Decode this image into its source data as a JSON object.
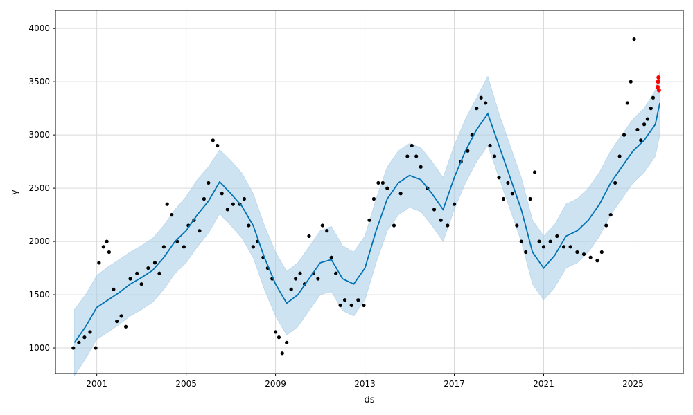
{
  "chart_data": {
    "type": "scatter",
    "title": "",
    "xlabel": "ds",
    "ylabel": "y",
    "xlim": [
      1999.15,
      2027.25
    ],
    "ylim": [
      760,
      4170
    ],
    "x_ticks": [
      2001,
      2005,
      2009,
      2013,
      2017,
      2021,
      2025
    ],
    "y_ticks": [
      1000,
      1500,
      2000,
      2500,
      3000,
      3500,
      4000
    ],
    "grid": true,
    "colors": {
      "observed": "#000000",
      "forecast_line": "#0072B2",
      "interval_fill": "#a6cce6",
      "future": "#ff0000"
    },
    "series": [
      {
        "kind": "forecast_trend",
        "x": [
          2000.0,
          2000.5,
          2001.0,
          2001.5,
          2002.0,
          2002.5,
          2003.0,
          2003.5,
          2004.0,
          2004.5,
          2005.0,
          2005.5,
          2006.0,
          2006.5,
          2007.0,
          2007.5,
          2008.0,
          2008.5,
          2009.0,
          2009.5,
          2010.0,
          2010.5,
          2011.0,
          2011.5,
          2012.0,
          2012.5,
          2013.0,
          2013.5,
          2014.0,
          2014.5,
          2015.0,
          2015.5,
          2016.0,
          2016.5,
          2017.0,
          2017.5,
          2018.0,
          2018.5,
          2019.0,
          2019.5,
          2020.0,
          2020.5,
          2021.0,
          2021.5,
          2022.0,
          2022.5,
          2023.0,
          2023.5,
          2024.0,
          2024.5,
          2025.0,
          2025.5,
          2026.0,
          2026.2
        ],
        "y": [
          1050,
          1200,
          1380,
          1450,
          1520,
          1600,
          1660,
          1730,
          1850,
          2000,
          2100,
          2250,
          2380,
          2560,
          2450,
          2330,
          2150,
          1850,
          1600,
          1420,
          1500,
          1650,
          1800,
          1830,
          1650,
          1600,
          1750,
          2100,
          2400,
          2550,
          2620,
          2580,
          2450,
          2300,
          2600,
          2850,
          3050,
          3200,
          2900,
          2600,
          2300,
          1900,
          1750,
          1870,
          2050,
          2100,
          2200,
          2350,
          2550,
          2700,
          2850,
          2950,
          3100,
          3300
        ]
      },
      {
        "kind": "forecast_upper",
        "x": [
          2000.0,
          2000.5,
          2001.0,
          2001.5,
          2002.0,
          2002.5,
          2003.0,
          2003.5,
          2004.0,
          2004.5,
          2005.0,
          2005.5,
          2006.0,
          2006.5,
          2007.0,
          2007.5,
          2008.0,
          2008.5,
          2009.0,
          2009.5,
          2010.0,
          2010.5,
          2011.0,
          2011.5,
          2012.0,
          2012.5,
          2013.0,
          2013.5,
          2014.0,
          2014.5,
          2015.0,
          2015.5,
          2016.0,
          2016.5,
          2017.0,
          2017.5,
          2018.0,
          2018.5,
          2019.0,
          2019.5,
          2020.0,
          2020.5,
          2021.0,
          2021.5,
          2022.0,
          2022.5,
          2023.0,
          2023.5,
          2024.0,
          2024.5,
          2025.0,
          2025.5,
          2026.0,
          2026.2
        ],
        "y": [
          1360,
          1500,
          1680,
          1760,
          1830,
          1900,
          1960,
          2030,
          2150,
          2300,
          2420,
          2580,
          2700,
          2860,
          2760,
          2640,
          2450,
          2150,
          1900,
          1720,
          1800,
          1950,
          2100,
          2140,
          1960,
          1900,
          2050,
          2400,
          2700,
          2850,
          2920,
          2880,
          2750,
          2600,
          2900,
          3150,
          3350,
          3550,
          3200,
          2900,
          2600,
          2200,
          2050,
          2160,
          2350,
          2400,
          2500,
          2650,
          2850,
          3000,
          3150,
          3250,
          3420,
          3600
        ]
      },
      {
        "kind": "forecast_lower",
        "x": [
          2000.0,
          2000.5,
          2001.0,
          2001.5,
          2002.0,
          2002.5,
          2003.0,
          2003.5,
          2004.0,
          2004.5,
          2005.0,
          2005.5,
          2006.0,
          2006.5,
          2007.0,
          2007.5,
          2008.0,
          2008.5,
          2009.0,
          2009.5,
          2010.0,
          2010.5,
          2011.0,
          2011.5,
          2012.0,
          2012.5,
          2013.0,
          2013.5,
          2014.0,
          2014.5,
          2015.0,
          2015.5,
          2016.0,
          2016.5,
          2017.0,
          2017.5,
          2018.0,
          2018.5,
          2019.0,
          2019.5,
          2020.0,
          2020.5,
          2021.0,
          2021.5,
          2022.0,
          2022.5,
          2023.0,
          2023.5,
          2024.0,
          2024.5,
          2025.0,
          2025.5,
          2026.0,
          2026.2
        ],
        "y": [
          740,
          900,
          1080,
          1150,
          1220,
          1300,
          1360,
          1430,
          1550,
          1700,
          1800,
          1950,
          2080,
          2260,
          2150,
          2030,
          1850,
          1550,
          1300,
          1120,
          1200,
          1350,
          1500,
          1530,
          1350,
          1300,
          1450,
          1800,
          2100,
          2250,
          2320,
          2280,
          2150,
          2000,
          2300,
          2550,
          2750,
          2900,
          2600,
          2300,
          2000,
          1600,
          1450,
          1570,
          1750,
          1800,
          1900,
          2050,
          2250,
          2400,
          2550,
          2650,
          2800,
          3000
        ]
      },
      {
        "kind": "observed",
        "x": [
          1999.95,
          2000.2,
          2000.45,
          2000.7,
          2000.95,
          2001.1,
          2001.3,
          2001.45,
          2001.55,
          2001.75,
          2001.9,
          2002.1,
          2002.3,
          2002.5,
          2002.8,
          2003.0,
          2003.3,
          2003.6,
          2003.8,
          2004.0,
          2004.15,
          2004.35,
          2004.6,
          2004.9,
          2005.1,
          2005.35,
          2005.6,
          2005.8,
          2006.0,
          2006.2,
          2006.4,
          2006.6,
          2006.85,
          2007.1,
          2007.4,
          2007.6,
          2007.8,
          2008.0,
          2008.2,
          2008.45,
          2008.65,
          2008.85,
          2009.0,
          2009.15,
          2009.3,
          2009.5,
          2009.7,
          2009.9,
          2010.1,
          2010.3,
          2010.5,
          2010.7,
          2010.9,
          2011.1,
          2011.3,
          2011.5,
          2011.7,
          2011.9,
          2012.1,
          2012.4,
          2012.7,
          2012.95,
          2013.2,
          2013.4,
          2013.6,
          2013.8,
          2014.0,
          2014.3,
          2014.6,
          2014.9,
          2015.1,
          2015.3,
          2015.5,
          2015.8,
          2016.1,
          2016.4,
          2016.7,
          2017.0,
          2017.3,
          2017.6,
          2017.8,
          2018.0,
          2018.2,
          2018.4,
          2018.6,
          2018.8,
          2019.0,
          2019.2,
          2019.4,
          2019.6,
          2019.8,
          2020.0,
          2020.2,
          2020.4,
          2020.6,
          2020.8,
          2021.0,
          2021.3,
          2021.6,
          2021.9,
          2022.2,
          2022.5,
          2022.8,
          2023.1,
          2023.4,
          2023.6,
          2023.8,
          2024.0,
          2024.2,
          2024.4,
          2024.6,
          2024.75,
          2024.9,
          2025.05,
          2025.2,
          2025.35,
          2025.5,
          2025.65,
          2025.8,
          2025.9
        ],
        "y": [
          1000,
          1050,
          1100,
          1150,
          1000,
          1800,
          1950,
          2000,
          1900,
          1550,
          1250,
          1300,
          1200,
          1650,
          1700,
          1600,
          1750,
          1800,
          1700,
          1950,
          2350,
          2250,
          2000,
          1950,
          2150,
          2200,
          2100,
          2400,
          2550,
          2950,
          2900,
          2450,
          2300,
          2350,
          2350,
          2400,
          2150,
          1950,
          2000,
          1850,
          1750,
          1650,
          1150,
          1100,
          950,
          1050,
          1550,
          1650,
          1700,
          1600,
          2050,
          1700,
          1650,
          2150,
          2100,
          1850,
          1700,
          1400,
          1450,
          1400,
          1450,
          1400,
          2200,
          2400,
          2550,
          2550,
          2500,
          2150,
          2450,
          2800,
          2900,
          2800,
          2700,
          2500,
          2300,
          2200,
          2150,
          2350,
          2750,
          2850,
          3000,
          3250,
          3350,
          3300,
          2900,
          2800,
          2600,
          2400,
          2550,
          2450,
          2150,
          2000,
          1900,
          2400,
          2650,
          2000,
          1950,
          2000,
          2050,
          1950,
          1950,
          1900,
          1880,
          1850,
          1820,
          1900,
          2150,
          2250,
          2550,
          2800,
          3000,
          3300,
          3500,
          3900,
          3050,
          2950,
          3100,
          3150,
          3250,
          3350
        ]
      },
      {
        "kind": "future",
        "x": [
          2026.1,
          2026.12,
          2026.14,
          2026.16
        ],
        "y": [
          3450,
          3500,
          3540,
          3420
        ]
      }
    ]
  }
}
